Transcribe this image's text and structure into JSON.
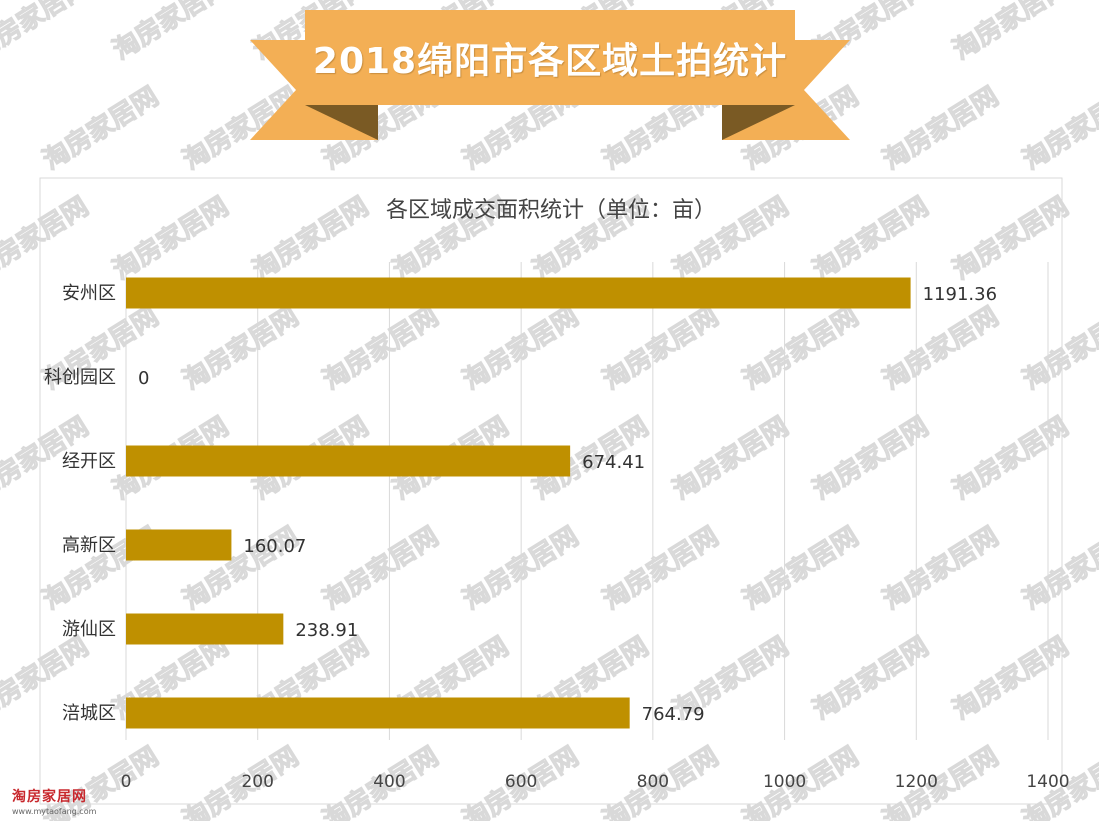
{
  "banner": {
    "title": "2018绵阳市各区域土拍统计",
    "color": "#F3AF55",
    "fold_color": "#7A5A24"
  },
  "watermark": {
    "text": "淘房家居网",
    "color": "#d9d9d9"
  },
  "logo": {
    "name": "淘房家居网",
    "url": "www.mytaofang.com"
  },
  "chart_data": {
    "type": "bar",
    "orientation": "horizontal",
    "title": "各区域成交面积统计（单位：亩）",
    "categories": [
      "安州区",
      "科创园区",
      "经开区",
      "高新区",
      "游仙区",
      "涪城区"
    ],
    "values": [
      1191.36,
      0,
      674.41,
      160.07,
      238.91,
      764.79
    ],
    "value_labels": [
      "1191.36",
      "0",
      "674.41",
      "160.07",
      "238.91",
      "764.79"
    ],
    "xlim": [
      0,
      1400
    ],
    "xticks": [
      "0",
      "200",
      "400",
      "600",
      "800",
      "1000",
      "1200",
      "1400"
    ],
    "xlabel": "",
    "ylabel": "",
    "grid": true,
    "legend": "none",
    "bar_color": "#BF9000"
  }
}
